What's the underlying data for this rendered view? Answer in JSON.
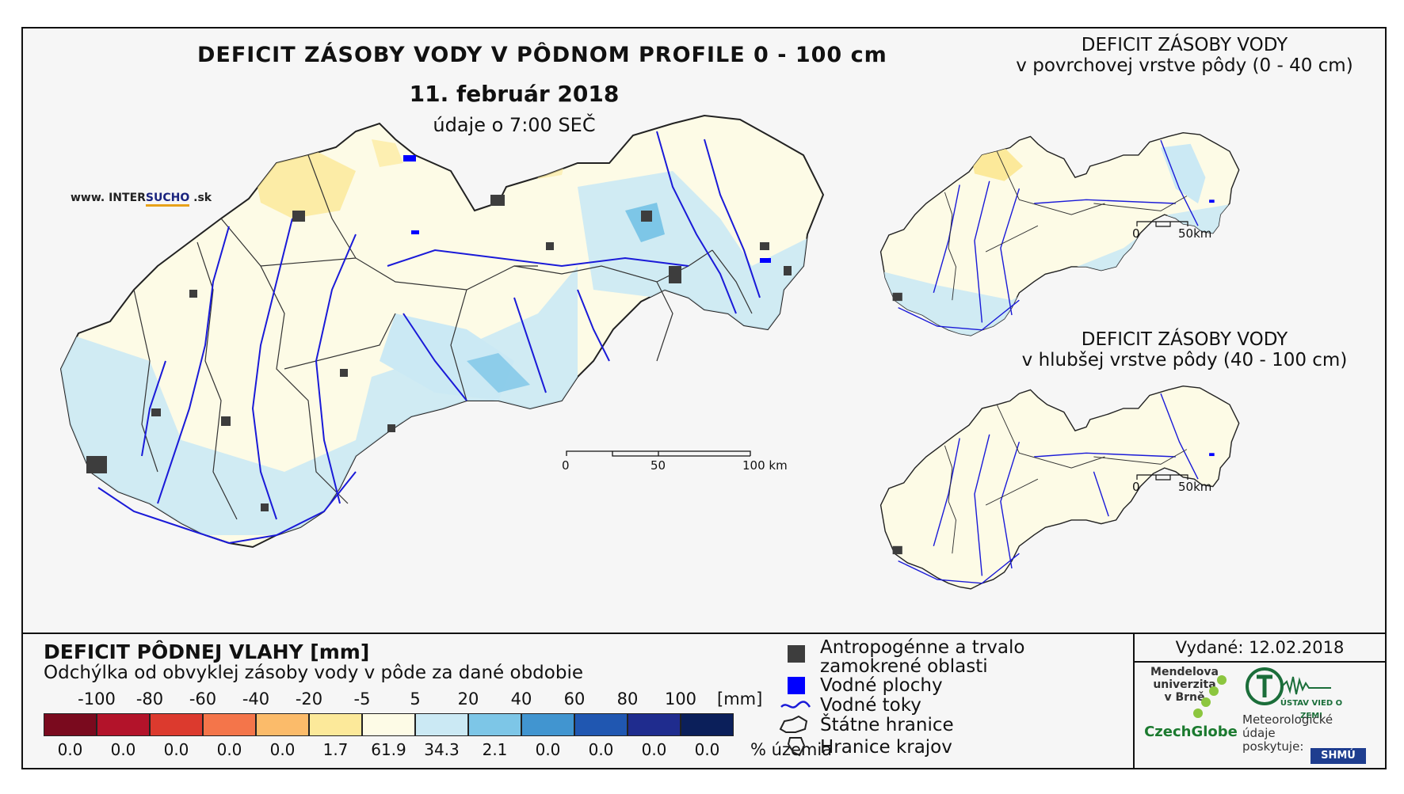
{
  "main_map": {
    "title": "DEFICIT ZÁSOBY VODY V PÔDNOM PROFILE 0 - 100 cm",
    "date": "11. február 2018",
    "time": "údaje o 7:00 SEČ",
    "logo": {
      "prefix": "www. INTER",
      "highlight": "SUCHO",
      "suffix": " .sk"
    },
    "scale": {
      "labels": [
        "0",
        "50",
        "100 km"
      ]
    }
  },
  "inset_top": {
    "title_line1": "DEFICIT ZÁSOBY VODY",
    "title_line2": "v povrchovej vrstve pôdy (0 - 40 cm)",
    "scale": {
      "labels": [
        "0",
        "50km"
      ]
    }
  },
  "inset_bottom": {
    "title_line1": "DEFICIT ZÁSOBY VODY",
    "title_line2": "v hlubšej vrstve pôdy (40 - 100 cm)",
    "scale": {
      "labels": [
        "0",
        "50km"
      ]
    }
  },
  "legend": {
    "title": "DEFICIT PÔDNEJ VLAHY [mm]",
    "subtitle": "Odchýlka od obvyklej zásoby vody v pôde za dané obdobie",
    "tick_labels": [
      "-100",
      "-80",
      "-60",
      "-40",
      "-20",
      "-5",
      "5",
      "20",
      "40",
      "60",
      "80",
      "100"
    ],
    "unit": "[mm]",
    "classes": [
      {
        "color": "#7a0a1e",
        "pct": "0.0"
      },
      {
        "color": "#b3132a",
        "pct": "0.0"
      },
      {
        "color": "#dc3a2e",
        "pct": "0.0"
      },
      {
        "color": "#f4754a",
        "pct": "0.0"
      },
      {
        "color": "#fbbb6a",
        "pct": "0.0"
      },
      {
        "color": "#fce99a",
        "pct": "1.7"
      },
      {
        "color": "#fdfbe6",
        "pct": "61.9"
      },
      {
        "color": "#cbe9f4",
        "pct": "34.3"
      },
      {
        "color": "#7dc6e7",
        "pct": "2.1"
      },
      {
        "color": "#4195d0",
        "pct": "0.0"
      },
      {
        "color": "#2057b1",
        "pct": "0.0"
      },
      {
        "color": "#1f2c8e",
        "pct": "0.0"
      },
      {
        "color": "#0b1f5a",
        "pct": "0.0"
      }
    ],
    "pct_unit": "% územia",
    "keys": [
      {
        "label_line1": "Antropogénne a trvalo",
        "label_line2": "zamokrené oblasti",
        "icon": "dark-grey-square"
      },
      {
        "label_line1": "Vodné plochy",
        "icon": "blue-square"
      },
      {
        "label_line1": "Vodné toky",
        "icon": "river-line"
      },
      {
        "label_line1": "Štátne hranice",
        "icon": "state-border-outline"
      },
      {
        "label_line1": "Hranice krajov",
        "icon": "region-border-outline"
      }
    ]
  },
  "issuer": {
    "issued": "Vydané: 12.02.2018",
    "mendel": [
      "Mendelova",
      "univerzita",
      "v Brně"
    ],
    "czechglobe": "CzechGlobe",
    "uvz": "ÚSTAV VIED O ZEMI",
    "meteo": [
      "Meteorologické",
      "údaje",
      "poskytuje:"
    ],
    "shmu": "SHMÚ"
  },
  "colors": {
    "river": "#1a1ad8",
    "urban": "#3d3d3d",
    "lake": "#0000ff",
    "border": "#222222"
  }
}
